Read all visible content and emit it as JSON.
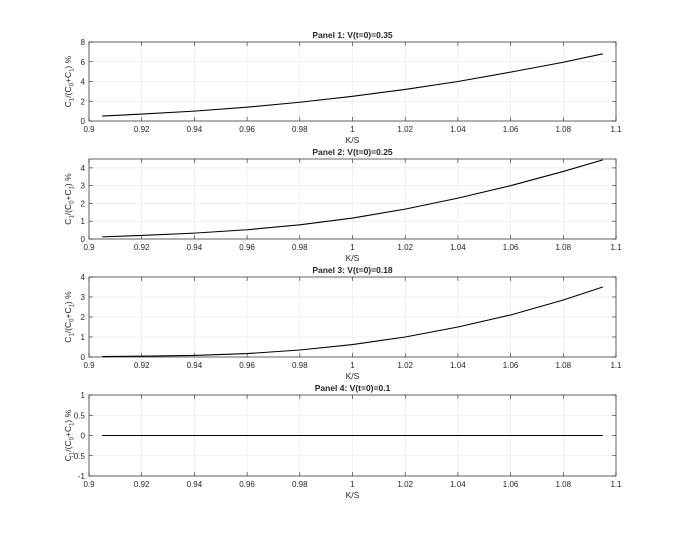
{
  "chart_data": [
    {
      "type": "line",
      "title": "Panel 1: V(t=0)=0.35",
      "xlabel": "K/S",
      "ylabel": {
        "main": "C",
        "s1": "1",
        "mid": "/(C",
        "s2": "0",
        "mid2": "+C",
        "s3": "1",
        "end": ") %"
      },
      "xlim": [
        0.9,
        1.1
      ],
      "ylim": [
        0,
        8
      ],
      "xticks": [
        0.9,
        0.92,
        0.94,
        0.96,
        0.98,
        1,
        1.02,
        1.04,
        1.06,
        1.08,
        1.1
      ],
      "xtick_labels": [
        "0.9",
        "0.92",
        "0.94",
        "0.96",
        "0.98",
        "1",
        "1.02",
        "1.04",
        "1.06",
        "1.08",
        "1.1"
      ],
      "yticks": [
        0,
        2,
        4,
        6,
        8
      ],
      "ytick_labels": [
        "0",
        "2",
        "4",
        "6",
        "8"
      ],
      "grid": true,
      "series": [
        {
          "color": "#000000",
          "x": [
            0.905,
            0.92,
            0.94,
            0.96,
            0.98,
            1.0,
            1.02,
            1.04,
            1.06,
            1.08,
            1.095
          ],
          "y": [
            0.5,
            0.7,
            1.0,
            1.4,
            1.9,
            2.5,
            3.2,
            4.0,
            4.95,
            5.95,
            6.8
          ]
        }
      ]
    },
    {
      "type": "line",
      "title": "Panel 2: V(t=0)=0.25",
      "xlabel": "K/S",
      "ylabel": {
        "main": "C",
        "s1": "1",
        "mid": "/(C",
        "s2": "0",
        "mid2": "+C",
        "s3": "1",
        "end": ") %"
      },
      "xlim": [
        0.9,
        1.1
      ],
      "ylim": [
        0,
        4.5
      ],
      "xticks": [
        0.9,
        0.92,
        0.94,
        0.96,
        0.98,
        1,
        1.02,
        1.04,
        1.06,
        1.08,
        1.1
      ],
      "xtick_labels": [
        "0.9",
        "0.92",
        "0.94",
        "0.96",
        "0.98",
        "1",
        "1.02",
        "1.04",
        "1.06",
        "1.08",
        "1.1"
      ],
      "yticks": [
        0,
        1,
        2,
        3,
        4
      ],
      "ytick_labels": [
        "0",
        "1",
        "2",
        "3",
        "4"
      ],
      "grid": true,
      "series": [
        {
          "color": "#000000",
          "x": [
            0.905,
            0.92,
            0.94,
            0.96,
            0.98,
            1.0,
            1.02,
            1.04,
            1.06,
            1.08,
            1.095
          ],
          "y": [
            0.12,
            0.2,
            0.33,
            0.52,
            0.8,
            1.18,
            1.68,
            2.3,
            3.0,
            3.8,
            4.45
          ]
        }
      ]
    },
    {
      "type": "line",
      "title": "Panel 3: V(t=0)=0.18",
      "xlabel": "K/S",
      "ylabel": {
        "main": "C",
        "s1": "1",
        "mid": "/(C",
        "s2": "0",
        "mid2": "+C",
        "s3": "1",
        "end": ") %"
      },
      "xlim": [
        0.9,
        1.1
      ],
      "ylim": [
        0,
        4
      ],
      "xticks": [
        0.9,
        0.92,
        0.94,
        0.96,
        0.98,
        1,
        1.02,
        1.04,
        1.06,
        1.08,
        1.1
      ],
      "xtick_labels": [
        "0.9",
        "0.92",
        "0.94",
        "0.96",
        "0.98",
        "1",
        "1.02",
        "1.04",
        "1.06",
        "1.08",
        "1.1"
      ],
      "yticks": [
        0,
        1,
        2,
        3,
        4
      ],
      "ytick_labels": [
        "0",
        "1",
        "2",
        "3",
        "4"
      ],
      "grid": true,
      "series": [
        {
          "color": "#000000",
          "x": [
            0.905,
            0.92,
            0.94,
            0.96,
            0.98,
            1.0,
            1.02,
            1.04,
            1.06,
            1.08,
            1.095
          ],
          "y": [
            0.02,
            0.04,
            0.08,
            0.17,
            0.35,
            0.62,
            1.0,
            1.5,
            2.1,
            2.85,
            3.5
          ]
        }
      ]
    },
    {
      "type": "line",
      "title": "Panel 4: V(t=0)=0.1",
      "xlabel": "K/S",
      "ylabel": {
        "main": "C",
        "s1": "1",
        "mid": "/(C",
        "s2": "0",
        "mid2": "+C",
        "s3": "1",
        "end": ") %"
      },
      "xlim": [
        0.9,
        1.1
      ],
      "ylim": [
        -1,
        1
      ],
      "xticks": [
        0.9,
        0.92,
        0.94,
        0.96,
        0.98,
        1,
        1.02,
        1.04,
        1.06,
        1.08,
        1.1
      ],
      "xtick_labels": [
        "0.9",
        "0.92",
        "0.94",
        "0.96",
        "0.98",
        "1",
        "1.02",
        "1.04",
        "1.06",
        "1.08",
        "1.1"
      ],
      "yticks": [
        -1,
        -0.5,
        0,
        0.5,
        1
      ],
      "ytick_labels": [
        "-1",
        "-0.5",
        "0",
        "0.5",
        "1"
      ],
      "grid": true,
      "series": [
        {
          "color": "#000000",
          "x": [
            0.905,
            1.095
          ],
          "y": [
            0,
            0
          ]
        }
      ]
    }
  ]
}
